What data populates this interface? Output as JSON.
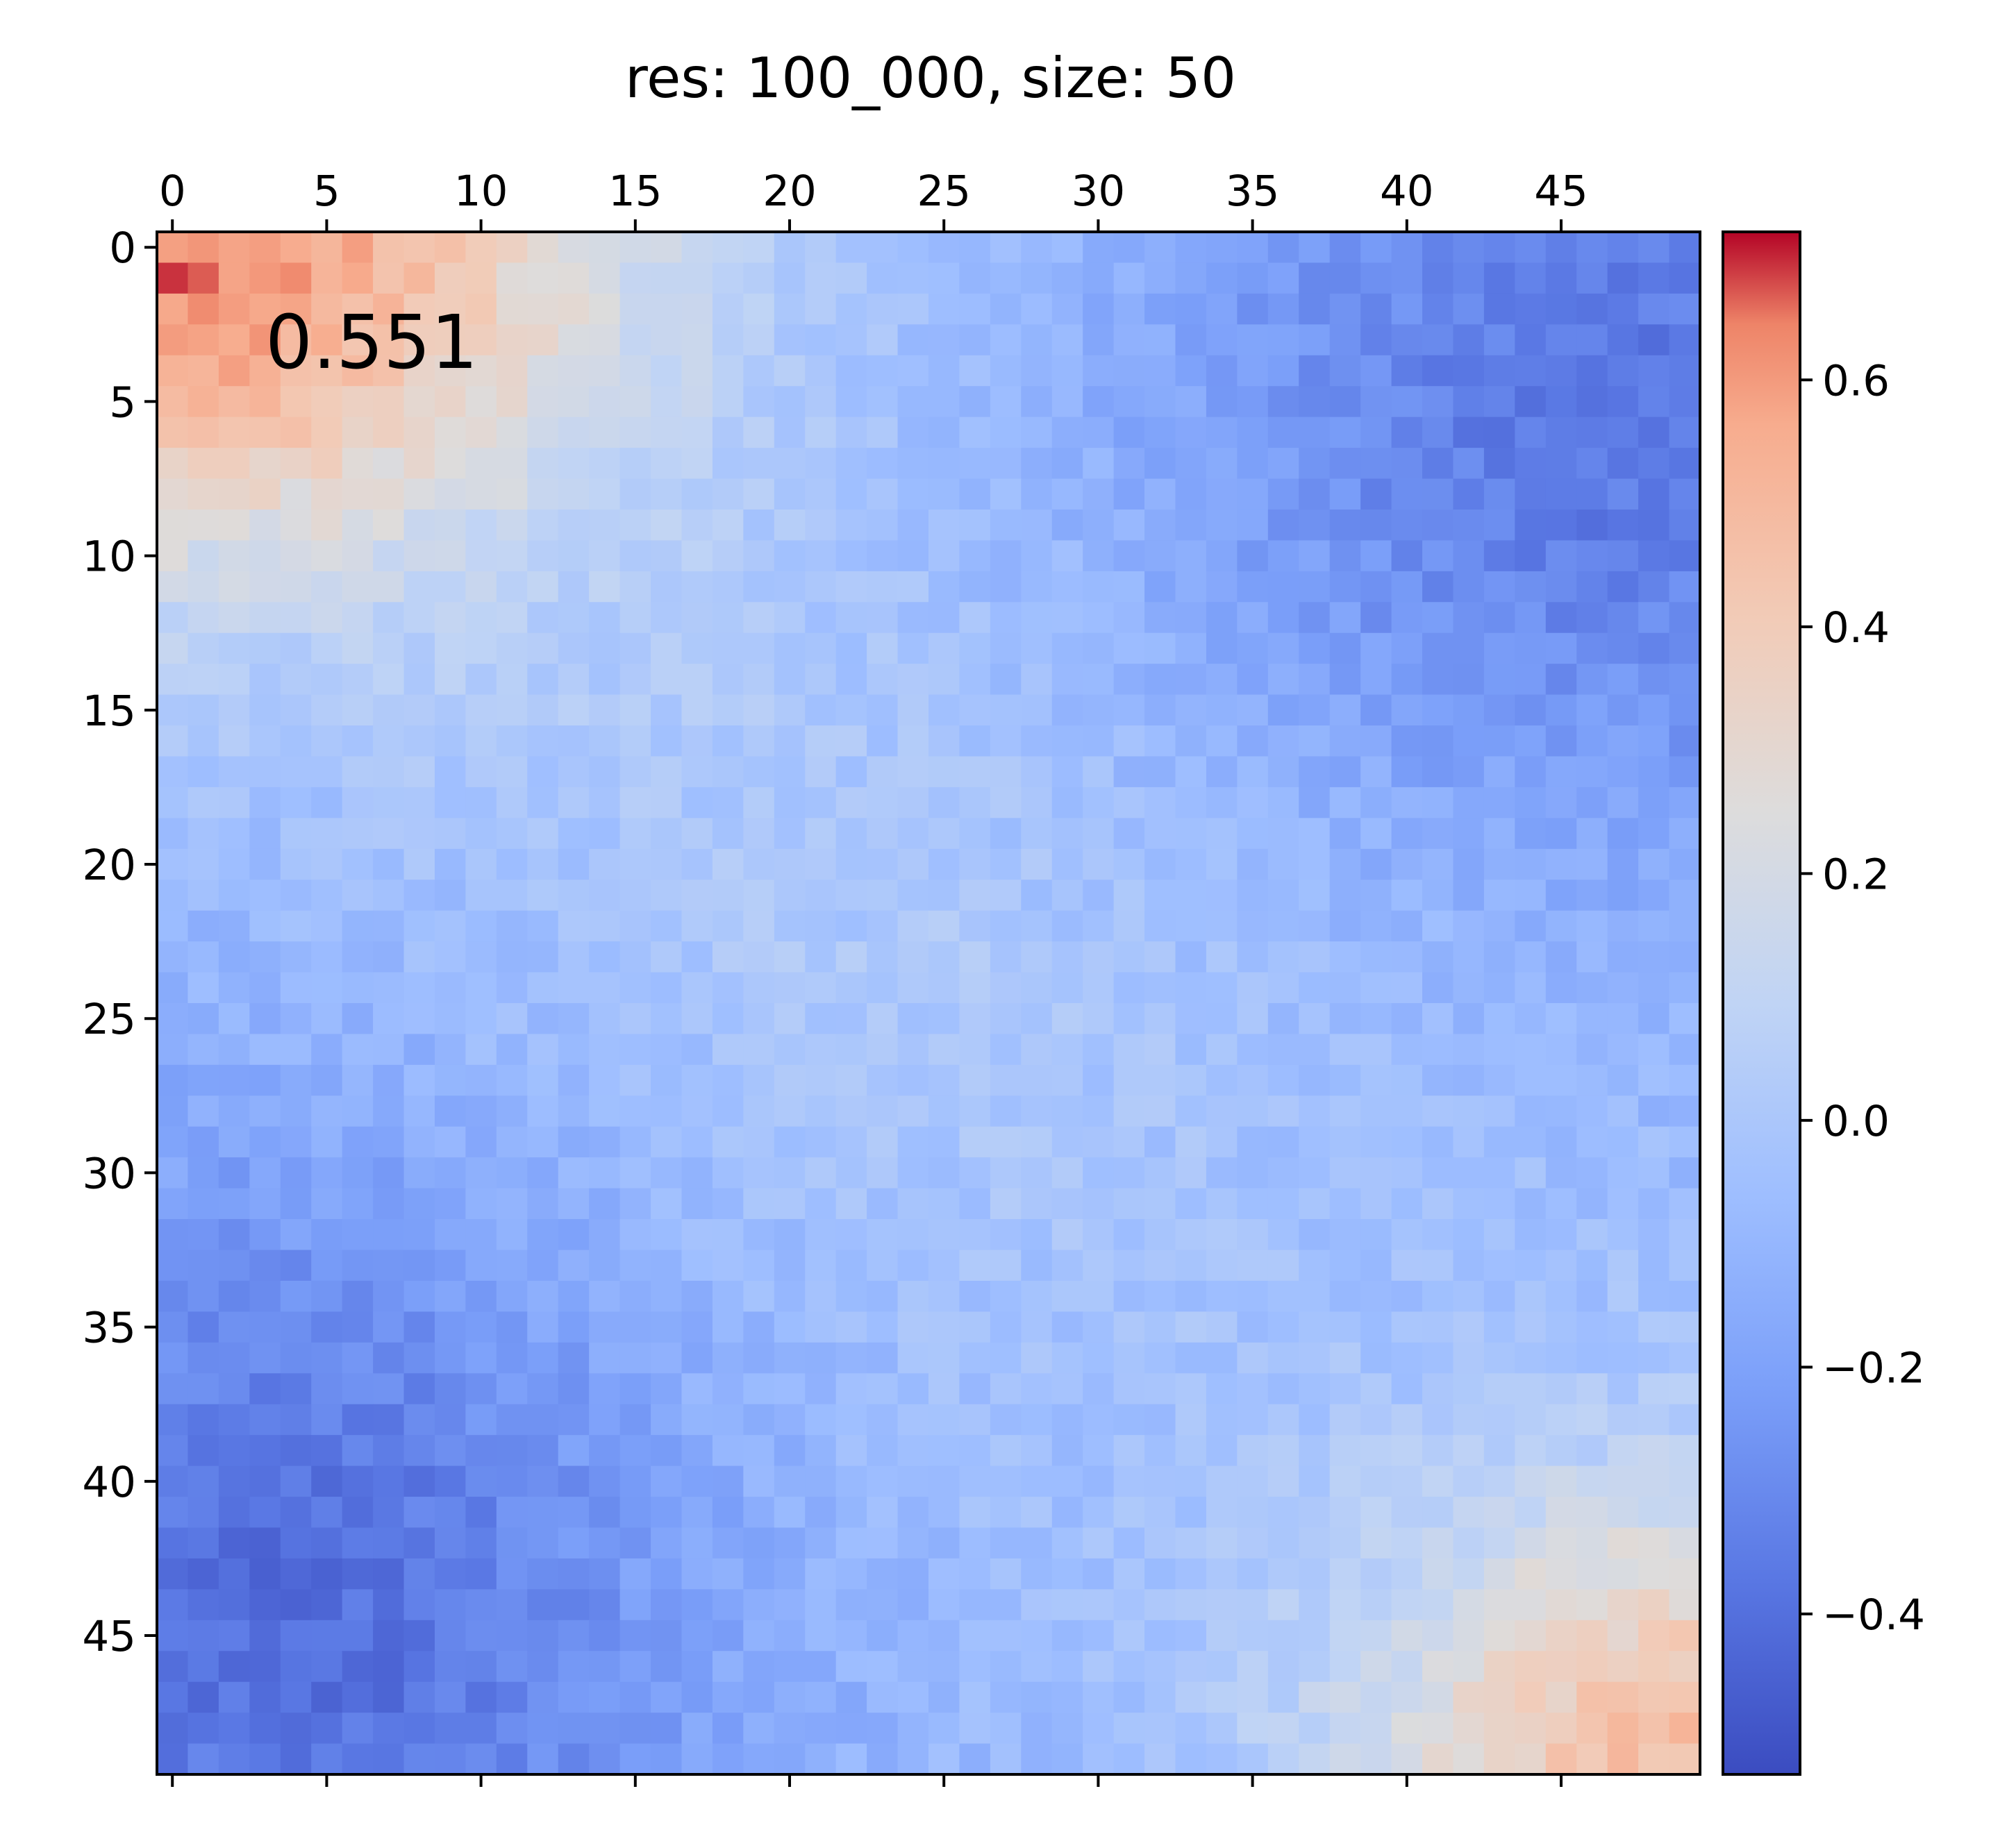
{
  "chart_data": {
    "type": "heatmap",
    "title": "res: 100_000, size: 50",
    "annotation": "0.551",
    "colormap": "coolwarm",
    "rows": 50,
    "cols": 50,
    "x_ticks": [
      "0",
      "5",
      "10",
      "15",
      "20",
      "25",
      "30",
      "35",
      "40",
      "45"
    ],
    "y_ticks": [
      "0",
      "5",
      "10",
      "15",
      "20",
      "25",
      "30",
      "35",
      "40",
      "45"
    ],
    "colorbar": {
      "range": [
        -0.53,
        0.72
      ],
      "ticks": [
        -0.4,
        -0.2,
        0.0,
        0.2,
        0.4,
        0.6
      ],
      "tick_labels": [
        "−0.4",
        "−0.2",
        "0.0",
        "0.2",
        "0.4",
        "0.6"
      ]
    },
    "grid": false,
    "summary_regions": [
      {
        "region": "top-left rows 0-8, cols 0-10",
        "approx_value": 0.5
      },
      {
        "region": "top-right rows 0-15, cols 35-49",
        "approx_value": -0.35
      },
      {
        "region": "bottom-left rows 30-49, cols 0-15",
        "approx_value": -0.35
      },
      {
        "region": "bottom-right rows 40-49, cols 40-49",
        "approx_value": 0.35
      }
    ]
  }
}
